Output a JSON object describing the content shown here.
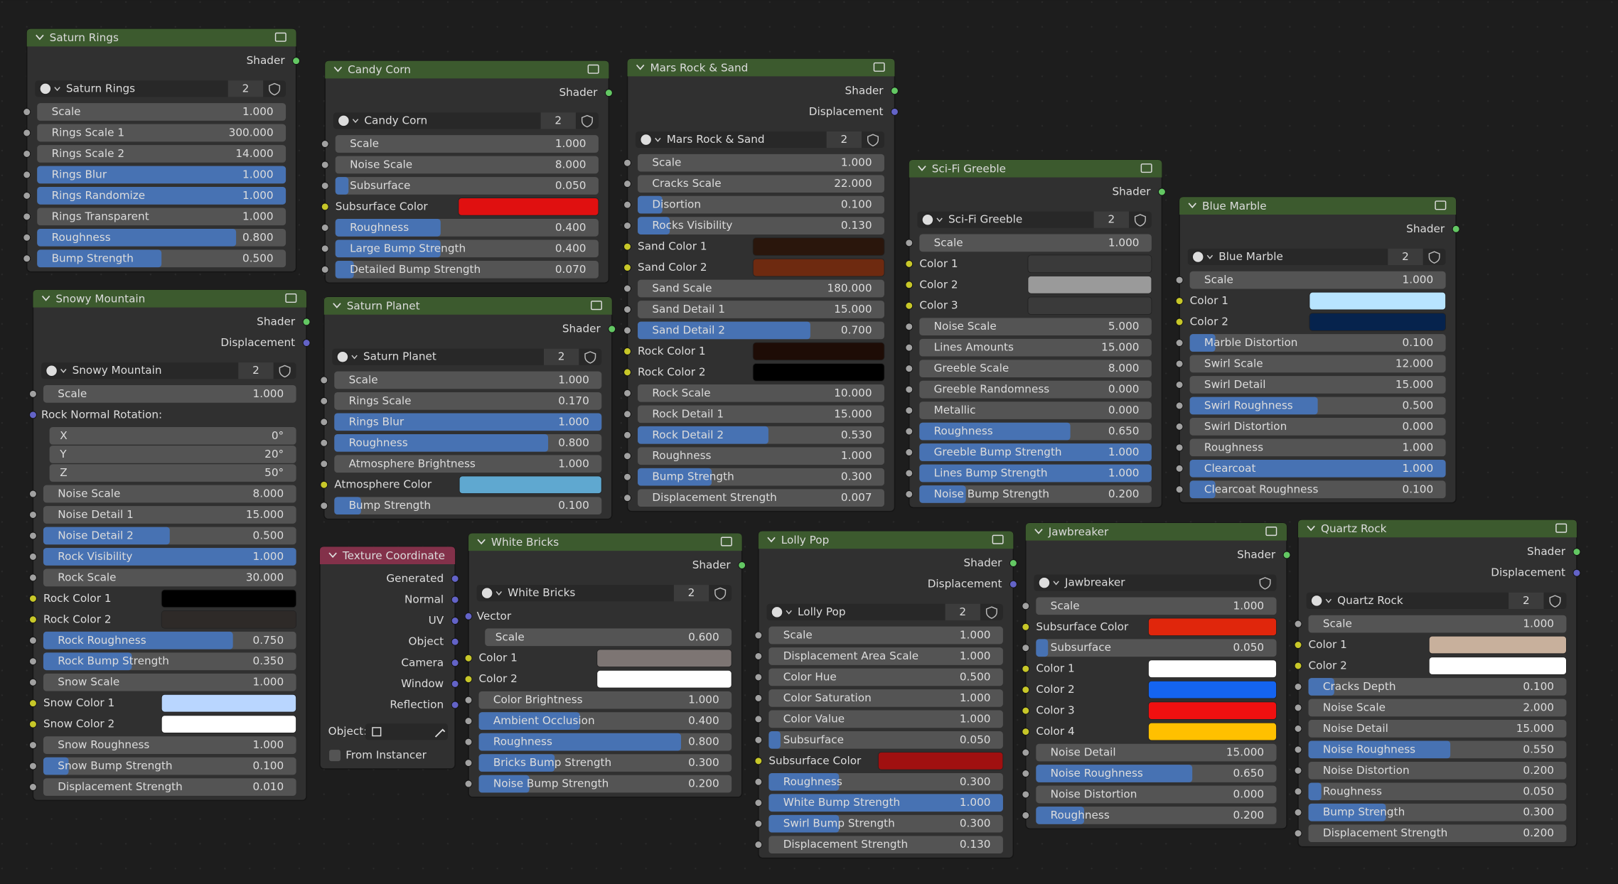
{
  "nodes": [
    {
      "title": "Saturn Rings",
      "header_color": "#3c5a2e",
      "outputs": [
        {
          "name": "Shader",
          "socket": "shader"
        }
      ],
      "datablock": {
        "name": "Saturn Rings",
        "users": "2"
      },
      "fields": [
        {
          "label": "Scale",
          "value": "1.000",
          "kind": "float"
        },
        {
          "label": "Rings Scale 1",
          "value": "300.000",
          "kind": "float"
        },
        {
          "label": "Rings Scale 2",
          "value": "14.000",
          "kind": "float"
        },
        {
          "label": "Rings Blur",
          "value": "1.000",
          "kind": "factor"
        },
        {
          "label": "Rings Randomize",
          "value": "1.000",
          "kind": "factor"
        },
        {
          "label": "Rings Transparent",
          "value": "1.000",
          "kind": "float"
        },
        {
          "label": "Roughness",
          "value": "0.800",
          "kind": "factor"
        },
        {
          "label": "Bump Strength",
          "value": "0.500",
          "kind": "factor"
        }
      ]
    },
    {
      "title": "Candy Corn",
      "header_color": "#3c5a2e",
      "outputs": [
        {
          "name": "Shader",
          "socket": "shader"
        }
      ],
      "datablock": {
        "name": "Candy Corn",
        "users": "2"
      },
      "fields": [
        {
          "label": "Scale",
          "value": "1.000",
          "kind": "float"
        },
        {
          "label": "Noise Scale",
          "value": "8.000",
          "kind": "float"
        },
        {
          "label": "Subsurface",
          "value": "0.050",
          "kind": "factor"
        },
        {
          "label": "Subsurface Color",
          "color": "#e01010",
          "kind": "color"
        },
        {
          "label": "Roughness",
          "value": "0.400",
          "kind": "factor"
        },
        {
          "label": "Large Bump Strength",
          "value": "0.400",
          "kind": "factor"
        },
        {
          "label": "Detailed Bump Strength",
          "value": "0.070",
          "kind": "factor"
        }
      ]
    },
    {
      "title": "Mars Rock & Sand",
      "header_color": "#3c5a2e",
      "outputs": [
        {
          "name": "Shader",
          "socket": "shader"
        },
        {
          "name": "Displacement",
          "socket": "vector"
        }
      ],
      "datablock": {
        "name": "Mars Rock & Sand",
        "users": "2"
      },
      "fields": [
        {
          "label": "Scale",
          "value": "1.000",
          "kind": "float"
        },
        {
          "label": "Cracks Scale",
          "value": "22.000",
          "kind": "float"
        },
        {
          "label": "Disortion",
          "value": "0.100",
          "kind": "factor"
        },
        {
          "label": "Rocks Visibility",
          "value": "0.130",
          "kind": "factor"
        },
        {
          "label": "Sand Color 1",
          "color": "#2a160c",
          "kind": "color"
        },
        {
          "label": "Sand Color 2",
          "color": "#6e2a10",
          "kind": "color"
        },
        {
          "label": "Sand Scale",
          "value": "180.000",
          "kind": "float"
        },
        {
          "label": "Sand Detail 1",
          "value": "15.000",
          "kind": "float"
        },
        {
          "label": "Sand Detail 2",
          "value": "0.700",
          "kind": "factor"
        },
        {
          "label": "Rock Color 1",
          "color": "#1e0c06",
          "kind": "color"
        },
        {
          "label": "Rock Color 2",
          "color": "#000000",
          "kind": "color"
        },
        {
          "label": "Rock Scale",
          "value": "10.000",
          "kind": "float"
        },
        {
          "label": "Rock Detail 1",
          "value": "15.000",
          "kind": "float"
        },
        {
          "label": "Rock Detail 2",
          "value": "0.530",
          "kind": "factor"
        },
        {
          "label": "Roughness",
          "value": "1.000",
          "kind": "float"
        },
        {
          "label": "Bump Strength",
          "value": "0.300",
          "kind": "factor"
        },
        {
          "label": "Displacement Strength",
          "value": "0.007",
          "kind": "float"
        }
      ]
    },
    {
      "title": "Sci-Fi Greeble",
      "header_color": "#3c5a2e",
      "outputs": [
        {
          "name": "Shader",
          "socket": "shader"
        }
      ],
      "datablock": {
        "name": "Sci-Fi Greeble",
        "users": "2"
      },
      "fields": [
        {
          "label": "Scale",
          "value": "1.000",
          "kind": "float"
        },
        {
          "label": "Color 1",
          "color": "#3a3a3a",
          "kind": "color"
        },
        {
          "label": "Color 2",
          "color": "#9a9a9a",
          "kind": "color"
        },
        {
          "label": "Color 3",
          "color": "#3a3a3a",
          "kind": "color"
        },
        {
          "label": "Noise Scale",
          "value": "5.000",
          "kind": "float"
        },
        {
          "label": "Lines Amounts",
          "value": "15.000",
          "kind": "float"
        },
        {
          "label": "Greeble Scale",
          "value": "8.000",
          "kind": "float"
        },
        {
          "label": "Greeble Randomness",
          "value": "0.000",
          "kind": "float"
        },
        {
          "label": "Metallic",
          "value": "0.000",
          "kind": "float"
        },
        {
          "label": "Roughness",
          "value": "0.650",
          "kind": "factor"
        },
        {
          "label": "Greeble Bump Strength",
          "value": "1.000",
          "kind": "factor"
        },
        {
          "label": "Lines Bump Strength",
          "value": "1.000",
          "kind": "factor"
        },
        {
          "label": "Noise Bump Strength",
          "value": "0.200",
          "kind": "factor"
        }
      ]
    },
    {
      "title": "Blue Marble",
      "header_color": "#3c5a2e",
      "outputs": [
        {
          "name": "Shader",
          "socket": "shader"
        }
      ],
      "datablock": {
        "name": "Blue Marble",
        "users": "2"
      },
      "fields": [
        {
          "label": "Scale",
          "value": "1.000",
          "kind": "float"
        },
        {
          "label": "Color 1",
          "color": "#b8e4ff",
          "kind": "color"
        },
        {
          "label": "Color 2",
          "color": "#06234d",
          "kind": "color"
        },
        {
          "label": "Marble Distortion",
          "value": "0.100",
          "kind": "factor"
        },
        {
          "label": "Swirl Scale",
          "value": "12.000",
          "kind": "float"
        },
        {
          "label": "Swirl Detail",
          "value": "15.000",
          "kind": "float"
        },
        {
          "label": "Swirl Roughness",
          "value": "0.500",
          "kind": "factor"
        },
        {
          "label": "Swirl Distortion",
          "value": "0.000",
          "kind": "float"
        },
        {
          "label": "Roughness",
          "value": "1.000",
          "kind": "float"
        },
        {
          "label": "Clearcoat",
          "value": "1.000",
          "kind": "factor"
        },
        {
          "label": "Clearcoat Roughness",
          "value": "0.100",
          "kind": "factor"
        }
      ]
    },
    {
      "title": "Snowy Mountain",
      "header_color": "#3c5a2e",
      "outputs": [
        {
          "name": "Shader",
          "socket": "shader"
        },
        {
          "name": "Displacement",
          "socket": "vector"
        }
      ],
      "datablock": {
        "name": "Snowy Mountain",
        "users": "2"
      },
      "fields": [
        {
          "label": "Scale",
          "value": "1.000",
          "kind": "float"
        },
        {
          "label": "Rock Normal Rotation:",
          "kind": "label"
        },
        {
          "label": "X",
          "value": "0°",
          "kind": "sub"
        },
        {
          "label": "Y",
          "value": "20°",
          "kind": "sub"
        },
        {
          "label": "Z",
          "value": "50°",
          "kind": "sub"
        },
        {
          "label": "Noise Scale",
          "value": "8.000",
          "kind": "float"
        },
        {
          "label": "Noise Detail 1",
          "value": "15.000",
          "kind": "float"
        },
        {
          "label": "Noise Detail 2",
          "value": "0.500",
          "kind": "factor"
        },
        {
          "label": "Rock Visibility",
          "value": "1.000",
          "kind": "factor"
        },
        {
          "label": "Rock Scale",
          "value": "30.000",
          "kind": "float"
        },
        {
          "label": "Rock Color 1",
          "color": "#000000",
          "kind": "color"
        },
        {
          "label": "Rock Color 2",
          "color": "#2e2a28",
          "kind": "color"
        },
        {
          "label": "Rock Roughness",
          "value": "0.750",
          "kind": "factor"
        },
        {
          "label": "Rock Bump Strength",
          "value": "0.350",
          "kind": "factor"
        },
        {
          "label": "Snow Scale",
          "value": "1.000",
          "kind": "float"
        },
        {
          "label": "Snow Color 1",
          "color": "#b9d6ff",
          "kind": "color"
        },
        {
          "label": "Snow Color 2",
          "color": "#ffffff",
          "kind": "color"
        },
        {
          "label": "Snow Roughness",
          "value": "1.000",
          "kind": "float"
        },
        {
          "label": "Snow Bump Strength",
          "value": "0.100",
          "kind": "factor"
        },
        {
          "label": "Displacement Strength",
          "value": "0.010",
          "kind": "float"
        }
      ]
    },
    {
      "title": "Saturn Planet",
      "header_color": "#3c5a2e",
      "outputs": [
        {
          "name": "Shader",
          "socket": "shader"
        }
      ],
      "datablock": {
        "name": "Saturn Planet",
        "users": "2"
      },
      "fields": [
        {
          "label": "Scale",
          "value": "1.000",
          "kind": "float"
        },
        {
          "label": "Rings Scale",
          "value": "0.170",
          "kind": "float"
        },
        {
          "label": "Rings Blur",
          "value": "1.000",
          "kind": "factor"
        },
        {
          "label": "Roughness",
          "value": "0.800",
          "kind": "factor"
        },
        {
          "label": "Atmosphere Brightness",
          "value": "1.000",
          "kind": "float"
        },
        {
          "label": "Atmosphere Color",
          "color": "#5fa8d0",
          "kind": "color"
        },
        {
          "label": "Bump Strength",
          "value": "0.100",
          "kind": "factor"
        }
      ]
    },
    {
      "title": "Texture Coordinate",
      "header_color": "#83314a",
      "outputs": [
        {
          "name": "Generated",
          "socket": "vector"
        },
        {
          "name": "Normal",
          "socket": "vector"
        },
        {
          "name": "UV",
          "socket": "vector"
        },
        {
          "name": "Object",
          "socket": "vector"
        },
        {
          "name": "Camera",
          "socket": "vector"
        },
        {
          "name": "Window",
          "socket": "vector"
        },
        {
          "name": "Reflection",
          "socket": "vector"
        }
      ],
      "fields": [
        {
          "label": "Object:",
          "kind": "object"
        },
        {
          "label": "From Instancer",
          "kind": "checkbox"
        }
      ]
    },
    {
      "title": "White Bricks",
      "header_color": "#3c5a2e",
      "outputs": [
        {
          "name": "Shader",
          "socket": "shader"
        }
      ],
      "datablock": {
        "name": "White Bricks",
        "users": "2"
      },
      "fields": [
        {
          "label": "Vector",
          "kind": "label"
        },
        {
          "label": "Scale",
          "value": "0.600",
          "kind": "sub"
        },
        {
          "label": "Color 1",
          "color": "#7d7573",
          "kind": "color"
        },
        {
          "label": "Color 2",
          "color": "#ffffff",
          "kind": "color"
        },
        {
          "label": "Color Brightness",
          "value": "1.000",
          "kind": "float"
        },
        {
          "label": "Ambient Occlusion",
          "value": "0.400",
          "kind": "factor"
        },
        {
          "label": "Roughness",
          "value": "0.800",
          "kind": "factor"
        },
        {
          "label": "Bricks Bump Strength",
          "value": "0.300",
          "kind": "factor"
        },
        {
          "label": "Noise Bump Strength",
          "value": "0.200",
          "kind": "factor"
        }
      ]
    },
    {
      "title": "Lolly Pop",
      "header_color": "#3c5a2e",
      "outputs": [
        {
          "name": "Shader",
          "socket": "shader"
        },
        {
          "name": "Displacement",
          "socket": "vector"
        }
      ],
      "datablock": {
        "name": "Lolly Pop",
        "users": "2"
      },
      "fields": [
        {
          "label": "Scale",
          "value": "1.000",
          "kind": "float"
        },
        {
          "label": "Displacement Area Scale",
          "value": "1.000",
          "kind": "float"
        },
        {
          "label": "Color Hue",
          "value": "0.500",
          "kind": "float"
        },
        {
          "label": "Color Saturation",
          "value": "1.000",
          "kind": "float"
        },
        {
          "label": "Color Value",
          "value": "1.000",
          "kind": "float"
        },
        {
          "label": "Subsurface",
          "value": "0.050",
          "kind": "factor"
        },
        {
          "label": "Subsurface Color",
          "color": "#a01010",
          "kind": "color"
        },
        {
          "label": "Roughness",
          "value": "0.300",
          "kind": "factor"
        },
        {
          "label": "White Bump Strength",
          "value": "1.000",
          "kind": "factor"
        },
        {
          "label": "Swirl Bump Strength",
          "value": "0.300",
          "kind": "factor"
        },
        {
          "label": "Displacement Strength",
          "value": "0.130",
          "kind": "float"
        }
      ]
    },
    {
      "title": "Jawbreaker",
      "header_color": "#3c5a2e",
      "outputs": [
        {
          "name": "Shader",
          "socket": "shader"
        }
      ],
      "datablock": {
        "name": "Jawbreaker"
      },
      "fields": [
        {
          "label": "Scale",
          "value": "1.000",
          "kind": "float"
        },
        {
          "label": "Subsurface Color",
          "color": "#e0260c",
          "kind": "color"
        },
        {
          "label": "Subsurface",
          "value": "0.050",
          "kind": "factor"
        },
        {
          "label": "Color 1",
          "color": "#ffffff",
          "kind": "color"
        },
        {
          "label": "Color 2",
          "color": "#1464f0",
          "kind": "color"
        },
        {
          "label": "Color 3",
          "color": "#f01010",
          "kind": "color"
        },
        {
          "label": "Color 4",
          "color": "#ffc000",
          "kind": "color"
        },
        {
          "label": "Noise Detail",
          "value": "15.000",
          "kind": "float"
        },
        {
          "label": "Noise Roughness",
          "value": "0.650",
          "kind": "factor"
        },
        {
          "label": "Noise Distortion",
          "value": "0.000",
          "kind": "float"
        },
        {
          "label": "Roughness",
          "value": "0.200",
          "kind": "factor"
        }
      ]
    },
    {
      "title": "Quartz Rock",
      "header_color": "#3c5a2e",
      "outputs": [
        {
          "name": "Shader",
          "socket": "shader"
        },
        {
          "name": "Displacement",
          "socket": "vector"
        }
      ],
      "datablock": {
        "name": "Quartz Rock",
        "users": "2"
      },
      "fields": [
        {
          "label": "Scale",
          "value": "1.000",
          "kind": "float"
        },
        {
          "label": "Color 1",
          "color": "#c8b09c",
          "kind": "color"
        },
        {
          "label": "Color 2",
          "color": "#ffffff",
          "kind": "color"
        },
        {
          "label": "Cracks Depth",
          "value": "0.100",
          "kind": "factor"
        },
        {
          "label": "Noise Scale",
          "value": "2.000",
          "kind": "float"
        },
        {
          "label": "Noise Detail",
          "value": "15.000",
          "kind": "float"
        },
        {
          "label": "Noise Roughness",
          "value": "0.550",
          "kind": "factor"
        },
        {
          "label": "Noise Distortion",
          "value": "0.200",
          "kind": "float"
        },
        {
          "label": "Roughness",
          "value": "0.050",
          "kind": "factor"
        },
        {
          "label": "Bump Strength",
          "value": "0.300",
          "kind": "factor"
        },
        {
          "label": "Displacement Strength",
          "value": "0.200",
          "kind": "float"
        }
      ]
    }
  ]
}
